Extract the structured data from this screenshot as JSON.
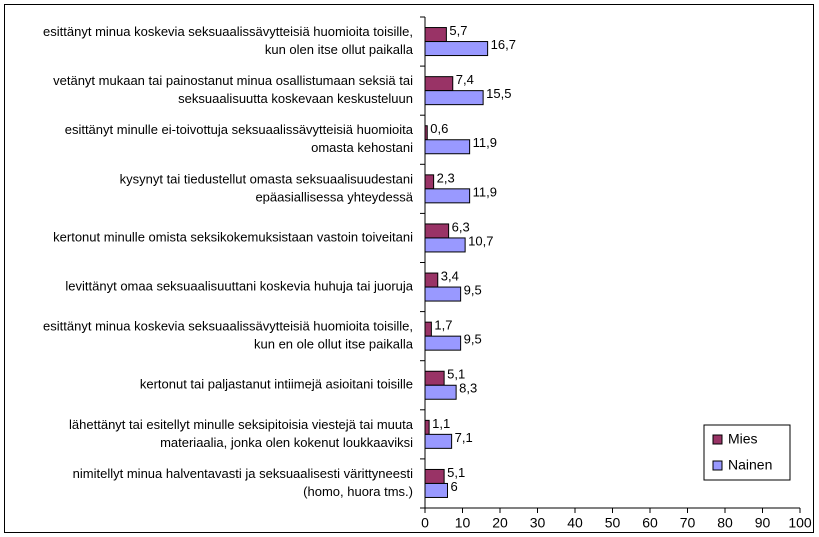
{
  "chart_data": {
    "type": "bar",
    "orientation": "horizontal",
    "categories": [
      [
        "esittänyt minua koskevia seksuaalissävytteisiä huomioita toisille,",
        "kun olen itse ollut paikalla"
      ],
      [
        "vetänyt mukaan tai painostanut minua osallistumaan seksiä tai",
        "seksuaalisuutta koskevaan keskusteluun"
      ],
      [
        "esittänyt minulle ei-toivottuja seksuaalissävytteisiä huomioita",
        "omasta kehostani"
      ],
      [
        "kysynyt tai tiedustellut omasta seksuaalisuudestani",
        "epäasiallisessa yhteydessä"
      ],
      [
        "kertonut minulle omista seksikokemuksistaan vastoin toiveitani"
      ],
      [
        "levittänyt omaa seksuaalisuuttani koskevia huhuja tai juoruja"
      ],
      [
        "esittänyt minua koskevia seksuaalissävytteisiä huomioita toisille,",
        "kun en ole ollut itse paikalla"
      ],
      [
        "kertonut tai paljastanut intiimejä asioitani toisille"
      ],
      [
        "lähettänyt tai esitellyt minulle seksipitoisia viestejä tai muuta",
        "materiaalia, jonka olen kokenut loukkaaviksi"
      ],
      [
        "nimitellyt minua halventavasti ja seksuaalisesti värittyneesti",
        "(homo, huora tms.)"
      ]
    ],
    "series": [
      {
        "name": "Mies",
        "color": "#993366",
        "values": [
          5.7,
          7.4,
          0.6,
          2.3,
          6.3,
          3.4,
          1.7,
          5.1,
          1.1,
          5.1
        ],
        "value_labels": [
          "5,7",
          "7,4",
          "0,6",
          "2,3",
          "6,3",
          "3,4",
          "1,7",
          "5,1",
          "1,1",
          "5,1"
        ]
      },
      {
        "name": "Nainen",
        "color": "#9999ff",
        "values": [
          16.7,
          15.5,
          11.9,
          11.9,
          10.7,
          9.5,
          9.5,
          8.3,
          7.1,
          6
        ],
        "value_labels": [
          "16,7",
          "15,5",
          "11,9",
          "11,9",
          "10,7",
          "9,5",
          "9,5",
          "8,3",
          "7,1",
          "6"
        ]
      }
    ],
    "xlim": [
      0,
      100
    ],
    "xticks": [
      0,
      10,
      20,
      30,
      40,
      50,
      60,
      70,
      80,
      90,
      100
    ],
    "grid": false,
    "legend": "lower right"
  }
}
